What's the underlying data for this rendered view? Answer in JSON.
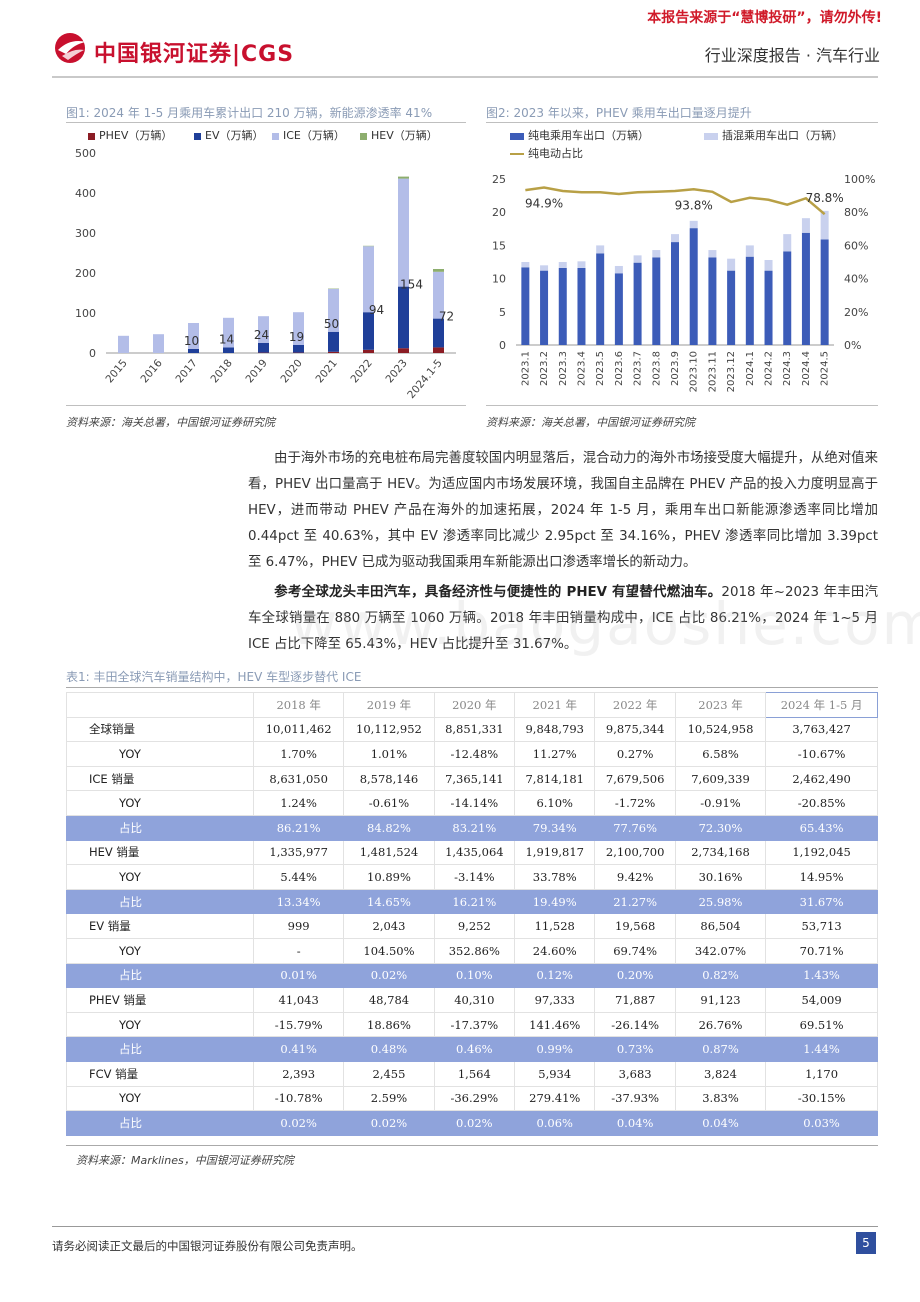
{
  "header": {
    "notice": "本报告来源于“慧博投研”，请勿外传!",
    "logo_text": "中国银河证券|CGS",
    "category": "行业深度报告 · 汽车行业"
  },
  "figure1": {
    "title": "图1: 2024 年 1-5 月乘用车累计出口 210 万辆，新能源渗透率 41%",
    "source": "资料来源：海关总署，中国银河证券研究院",
    "legend": [
      {
        "label": "PHEV（万辆）",
        "color": "#8b1c24"
      },
      {
        "label": "EV（万辆）",
        "color": "#1f3f99"
      },
      {
        "label": "ICE（万辆）",
        "color": "#b3bde8"
      },
      {
        "label": "HEV（万辆）",
        "color": "#8dae6e"
      }
    ],
    "y_ticks": [
      "0",
      "100",
      "200",
      "300",
      "400",
      "500"
    ]
  },
  "figure2": {
    "title": "图2: 2023 年以来，PHEV 乘用车出口量逐月提升",
    "source": "资料来源：海关总署，中国银河证券研究院",
    "legend": [
      {
        "label": "纯电乘用车出口（万辆）",
        "color": "#3c5cb8"
      },
      {
        "label": "插混乘用车出口（万辆）",
        "color": "#c9d1ee"
      },
      {
        "label": "纯电动占比",
        "color": "#b8a046"
      }
    ],
    "y_left_ticks": [
      "0",
      "5",
      "10",
      "15",
      "20",
      "25"
    ],
    "y_right_ticks": [
      "0%",
      "20%",
      "40%",
      "60%",
      "80%",
      "100%"
    ]
  },
  "chart_data": [
    {
      "type": "bar",
      "title": "图1: 2024 年 1-5 月乘用车累计出口 210 万辆，新能源渗透率 41%",
      "stacked": true,
      "categories": [
        "2015",
        "2016",
        "2017",
        "2018",
        "2019",
        "2020",
        "2021",
        "2022",
        "2023",
        "2024.1-5"
      ],
      "series": [
        {
          "name": "PHEV（万辆）",
          "values": [
            0,
            0,
            0,
            0,
            1,
            1,
            3,
            8,
            12,
            14
          ]
        },
        {
          "name": "EV（万辆）",
          "values": [
            0,
            0,
            10,
            14,
            24,
            19,
            50,
            94,
            154,
            72
          ]
        },
        {
          "name": "ICE（万辆）",
          "values": [
            43,
            47,
            65,
            74,
            67,
            82,
            107,
            165,
            270,
            117
          ]
        },
        {
          "name": "HEV（万辆）",
          "values": [
            0,
            0,
            0,
            0,
            0,
            0,
            1,
            1,
            5,
            7
          ]
        }
      ],
      "data_labels": [
        null,
        null,
        "10",
        "14",
        "24",
        "19",
        "50",
        "94",
        "154",
        "72"
      ],
      "ylim": [
        0,
        500
      ],
      "legend": "top",
      "grid": false
    },
    {
      "type": "bar",
      "title": "图2: 2023 年以来，PHEV 乘用车出口量逐月提升",
      "stacked": true,
      "categories": [
        "2023.1",
        "2023.2",
        "2023.3",
        "2023.4",
        "2023.5",
        "2023.6",
        "2023.7",
        "2023.8",
        "2023.9",
        "2023.10",
        "2023.11",
        "2023.12",
        "2024.1",
        "2024.2",
        "2024.3",
        "2024.4",
        "2024.5"
      ],
      "series": [
        {
          "name": "纯电乘用车出口（万辆）",
          "values": [
            11.7,
            11.2,
            11.6,
            11.6,
            13.8,
            10.8,
            12.4,
            13.2,
            15.5,
            17.6,
            13.2,
            11.2,
            13.3,
            11.2,
            14.1,
            16.9,
            15.9
          ]
        },
        {
          "name": "插混乘用车出口（万辆）",
          "values": [
            0.8,
            0.8,
            0.9,
            1.0,
            1.2,
            1.1,
            1.1,
            1.1,
            1.2,
            1.1,
            1.1,
            1.8,
            1.7,
            1.6,
            2.6,
            2.2,
            4.3
          ]
        },
        {
          "name": "纯电动占比",
          "axis": "right",
          "type": "line",
          "values": [
            0.933,
            0.949,
            0.928,
            0.92,
            0.92,
            0.91,
            0.92,
            0.923,
            0.928,
            0.938,
            0.923,
            0.862,
            0.887,
            0.875,
            0.845,
            0.884,
            0.788
          ]
        }
      ],
      "annotations": [
        "94.9%",
        "93.8%",
        "78.8%"
      ],
      "ylim_left": [
        0,
        25
      ],
      "ylim_right": [
        0,
        1
      ],
      "legend": "top",
      "grid": false
    }
  ],
  "paragraphs": {
    "p1": "由于海外市场的充电桩布局完善度较国内明显落后，混合动力的海外市场接受度大幅提升，从绝对值来看，PHEV 出口量高于 HEV。为适应国内市场发展环境，我国自主品牌在 PHEV 产品的投入力度明显高于 HEV，进而带动 PHEV 产品在海外的加速拓展，2024 年 1-5 月，乘用车出口新能源渗透率同比增加 0.44pct 至 40.63%，其中 EV 渗透率同比减少 2.95pct 至 34.16%，PHEV 渗透率同比增加 3.39pct 至 6.47%，PHEV 已成为驱动我国乘用车新能源出口渗透率增长的新动力。",
    "p2_bold": "参考全球龙头丰田汽车，具备经济性与便捷性的 PHEV 有望替代燃油车。",
    "p2_rest": "2018 年~2023 年丰田汽车全球销量在 880 万辆至 1060 万辆。2018 年丰田销量构成中，ICE 占比 86.21%，2024 年 1~5 月 ICE 占比下降至 65.43%，HEV 占比提升至 31.67%。"
  },
  "table": {
    "title": "表1: 丰田全球汽车销量结构中，HEV 车型逐步替代 ICE",
    "source": "资料来源：Marklines，中国银河证券研究院",
    "headers": [
      "",
      "2018 年",
      "2019 年",
      "2020 年",
      "2021 年",
      "2022 年",
      "2023 年",
      "2024 年 1-5 月"
    ],
    "rows": [
      {
        "kind": "main",
        "cells": [
          "全球销量",
          "10,011,462",
          "10,112,952",
          "8,851,331",
          "9,848,793",
          "9,875,344",
          "10,524,958",
          "3,763,427"
        ]
      },
      {
        "kind": "sub",
        "cells": [
          "YOY",
          "1.70%",
          "1.01%",
          "-12.48%",
          "11.27%",
          "0.27%",
          "6.58%",
          "-10.67%"
        ]
      },
      {
        "kind": "main",
        "cells": [
          "ICE 销量",
          "8,631,050",
          "8,578,146",
          "7,365,141",
          "7,814,181",
          "7,679,506",
          "7,609,339",
          "2,462,490"
        ]
      },
      {
        "kind": "sub",
        "cells": [
          "YOY",
          "1.24%",
          "-0.61%",
          "-14.14%",
          "6.10%",
          "-1.72%",
          "-0.91%",
          "-20.85%"
        ]
      },
      {
        "kind": "hl",
        "cells": [
          "占比",
          "86.21%",
          "84.82%",
          "83.21%",
          "79.34%",
          "77.76%",
          "72.30%",
          "65.43%"
        ]
      },
      {
        "kind": "main",
        "cells": [
          "HEV 销量",
          "1,335,977",
          "1,481,524",
          "1,435,064",
          "1,919,817",
          "2,100,700",
          "2,734,168",
          "1,192,045"
        ]
      },
      {
        "kind": "sub",
        "cells": [
          "YOY",
          "5.44%",
          "10.89%",
          "-3.14%",
          "33.78%",
          "9.42%",
          "30.16%",
          "14.95%"
        ]
      },
      {
        "kind": "hl",
        "cells": [
          "占比",
          "13.34%",
          "14.65%",
          "16.21%",
          "19.49%",
          "21.27%",
          "25.98%",
          "31.67%"
        ]
      },
      {
        "kind": "main",
        "cells": [
          "EV 销量",
          "999",
          "2,043",
          "9,252",
          "11,528",
          "19,568",
          "86,504",
          "53,713"
        ]
      },
      {
        "kind": "sub",
        "cells": [
          "YOY",
          "-",
          "104.50%",
          "352.86%",
          "24.60%",
          "69.74%",
          "342.07%",
          "70.71%"
        ]
      },
      {
        "kind": "hl",
        "cells": [
          "占比",
          "0.01%",
          "0.02%",
          "0.10%",
          "0.12%",
          "0.20%",
          "0.82%",
          "1.43%"
        ]
      },
      {
        "kind": "main",
        "cells": [
          "PHEV 销量",
          "41,043",
          "48,784",
          "40,310",
          "97,333",
          "71,887",
          "91,123",
          "54,009"
        ]
      },
      {
        "kind": "sub",
        "cells": [
          "YOY",
          "-15.79%",
          "18.86%",
          "-17.37%",
          "141.46%",
          "-26.14%",
          "26.76%",
          "69.51%"
        ]
      },
      {
        "kind": "hl",
        "cells": [
          "占比",
          "0.41%",
          "0.48%",
          "0.46%",
          "0.99%",
          "0.73%",
          "0.87%",
          "1.44%"
        ]
      },
      {
        "kind": "main",
        "cells": [
          "FCV 销量",
          "2,393",
          "2,455",
          "1,564",
          "5,934",
          "3,683",
          "3,824",
          "1,170"
        ]
      },
      {
        "kind": "sub",
        "cells": [
          "YOY",
          "-10.78%",
          "2.59%",
          "-36.29%",
          "279.41%",
          "-37.93%",
          "3.83%",
          "-30.15%"
        ]
      },
      {
        "kind": "hl",
        "cells": [
          "占比",
          "0.02%",
          "0.02%",
          "0.02%",
          "0.06%",
          "0.04%",
          "0.04%",
          "0.03%"
        ]
      }
    ]
  },
  "footer": {
    "disclaimer": "请务必阅读正文最后的中国银河证券股份有限公司免责声明。",
    "page": "5"
  }
}
